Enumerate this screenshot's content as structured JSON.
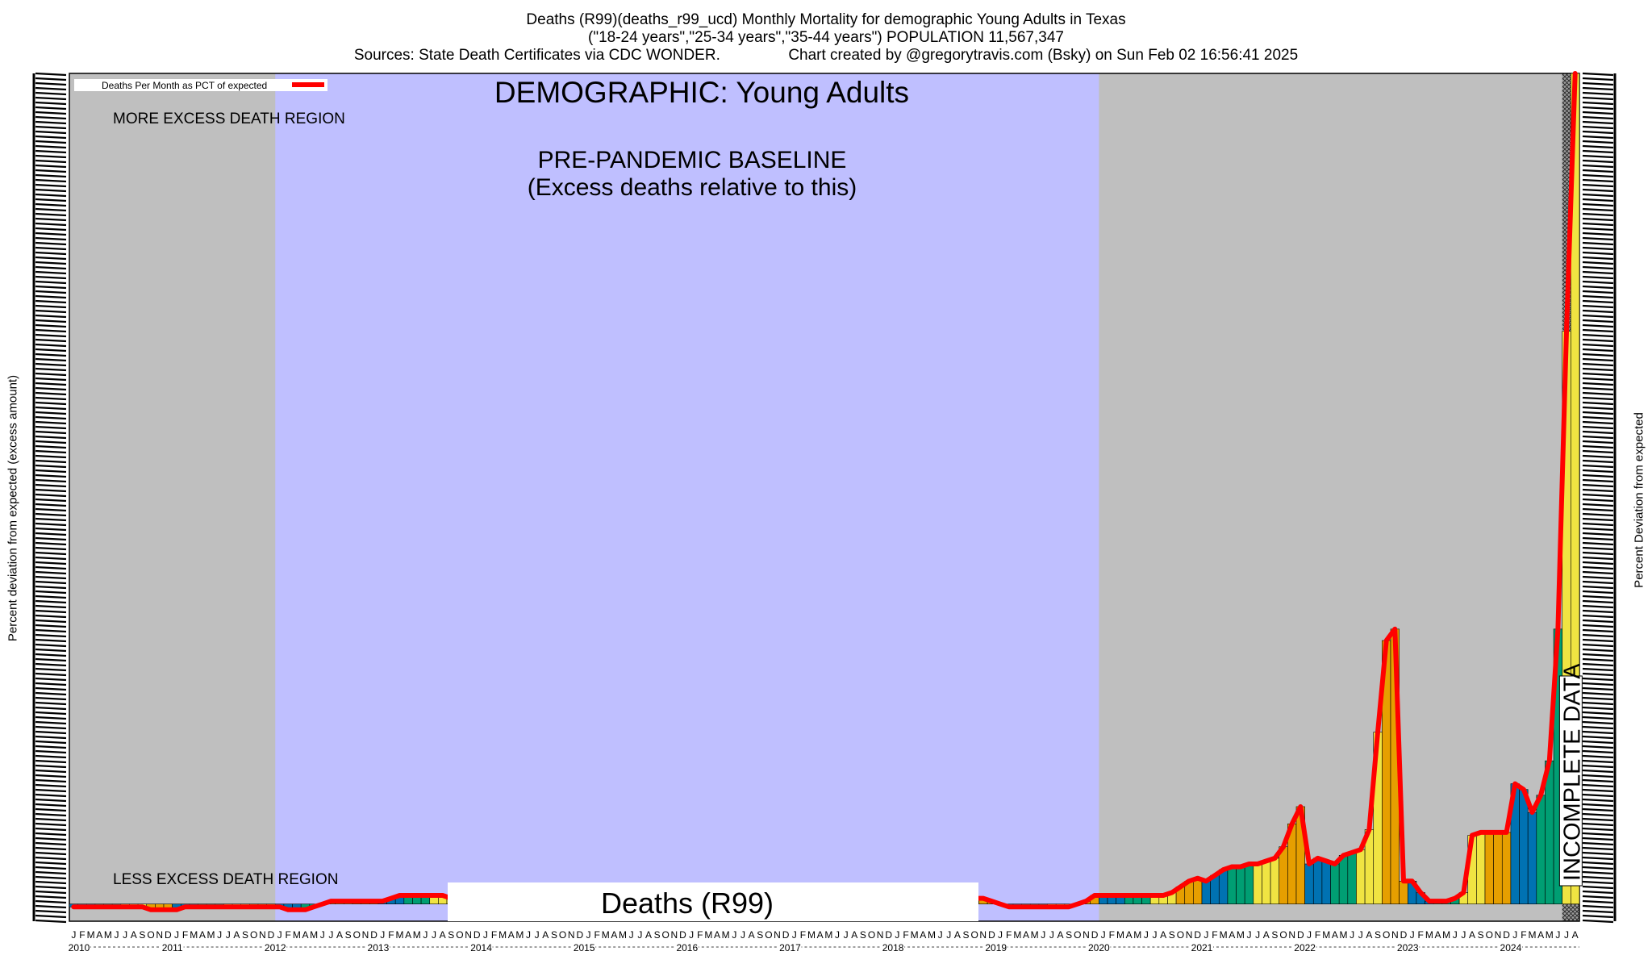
{
  "header": {
    "title_line1": "Deaths (R99)(deaths_r99_ucd) Monthly Mortality for demographic Young Adults in Texas",
    "title_line2": "(\"18-24 years\",\"25-34 years\",\"35-44 years\") POPULATION 11,567,347",
    "title_line3": "Sources: State Death Certificates via CDC WONDER.                Chart created by @gregorytravis.com (Bsky) on Sun Feb 02 16:56:41 2025"
  },
  "chart_data": {
    "type": "bar",
    "title": "DEMOGRAPHIC: Young Adults",
    "cause_label": "Deaths (R99)",
    "ylabel_left": "Percent deviation from expected (excess amount)",
    "ylabel_right": "Percent Deviation from expected",
    "legend": {
      "label": "Deaths Per Month as PCT of expected",
      "color": "#ff0000",
      "placement": "top-left"
    },
    "annotations": {
      "more_excess": "MORE EXCESS DEATH REGION",
      "less_excess": "LESS EXCESS DEATH REGION",
      "baseline_line1": "PRE-PANDEMIC BASELINE",
      "baseline_line2": "(Excess deaths relative to this)",
      "incomplete": "INCOMPLETE DATA"
    },
    "regions": {
      "baseline": {
        "start": "2012-01",
        "end": "2019-12",
        "color": "#bfbfff"
      },
      "outside_color": "#bfbfbf",
      "incomplete": {
        "start": "2024-07",
        "end": "2024-08"
      }
    },
    "month_letters": [
      "J",
      "F",
      "M",
      "A",
      "M",
      "J",
      "J",
      "A",
      "S",
      "O",
      "N",
      "D"
    ],
    "years": [
      "2010",
      "2011",
      "2012",
      "2013",
      "2014",
      "2015",
      "2016",
      "2017",
      "2018",
      "2019",
      "2020",
      "2021",
      "2022",
      "2023",
      "2024"
    ],
    "final_year_months": 8,
    "bar_colors": [
      "#0072b2",
      "#009e73",
      "#f0e442",
      "#e69f00"
    ],
    "y_units": "percent of expected (baseline = 100)",
    "ylim": [
      97,
      245
    ],
    "series": [
      {
        "name": "Deaths Per Month as PCT of expected",
        "start": "2010-01",
        "values": [
          99.5,
          99.5,
          99.5,
          99.5,
          99.5,
          99.5,
          99.5,
          99.5,
          99.5,
          99,
          99,
          99,
          99,
          99.5,
          99.5,
          99.5,
          99.5,
          99.5,
          99.5,
          99.5,
          99.5,
          99.5,
          99.5,
          99.5,
          99.5,
          99,
          99,
          99,
          99.5,
          100,
          100.5,
          100.5,
          100.5,
          100.5,
          100.5,
          100.5,
          100.5,
          101,
          101.5,
          101.5,
          101.5,
          101.5,
          101.5,
          101.5,
          101,
          101,
          101,
          101,
          101,
          101,
          101,
          101,
          101,
          101,
          101,
          101,
          101,
          101,
          101,
          101,
          101,
          101,
          101,
          101,
          101,
          101,
          101,
          101,
          101,
          101,
          101,
          101,
          101,
          101,
          101,
          101,
          101,
          101,
          101,
          101,
          101,
          101,
          101,
          101,
          101,
          101,
          101,
          101,
          101,
          101,
          101,
          101,
          101,
          101,
          101,
          101,
          101,
          101,
          101,
          101,
          101,
          101,
          101,
          101,
          101,
          101,
          101,
          100.5,
          100,
          99.5,
          99.5,
          99.5,
          99.5,
          99.5,
          99.5,
          99.5,
          99.5,
          100,
          100.5,
          101.5,
          101.5,
          101.5,
          101.5,
          101.5,
          101.5,
          101.5,
          101.5,
          101.5,
          102,
          103,
          104,
          104.5,
          104,
          105,
          106,
          106.5,
          106.5,
          107,
          107,
          107.5,
          108,
          110,
          114,
          117,
          107,
          108,
          107.5,
          107,
          108.5,
          109,
          109.5,
          113,
          130,
          146,
          148,
          104,
          104,
          102,
          100.5,
          100.5,
          100.5,
          101,
          102,
          112,
          112.5,
          112.5,
          112.5,
          112.5,
          121,
          120,
          116,
          119,
          125,
          148,
          200,
          245
        ]
      }
    ]
  }
}
